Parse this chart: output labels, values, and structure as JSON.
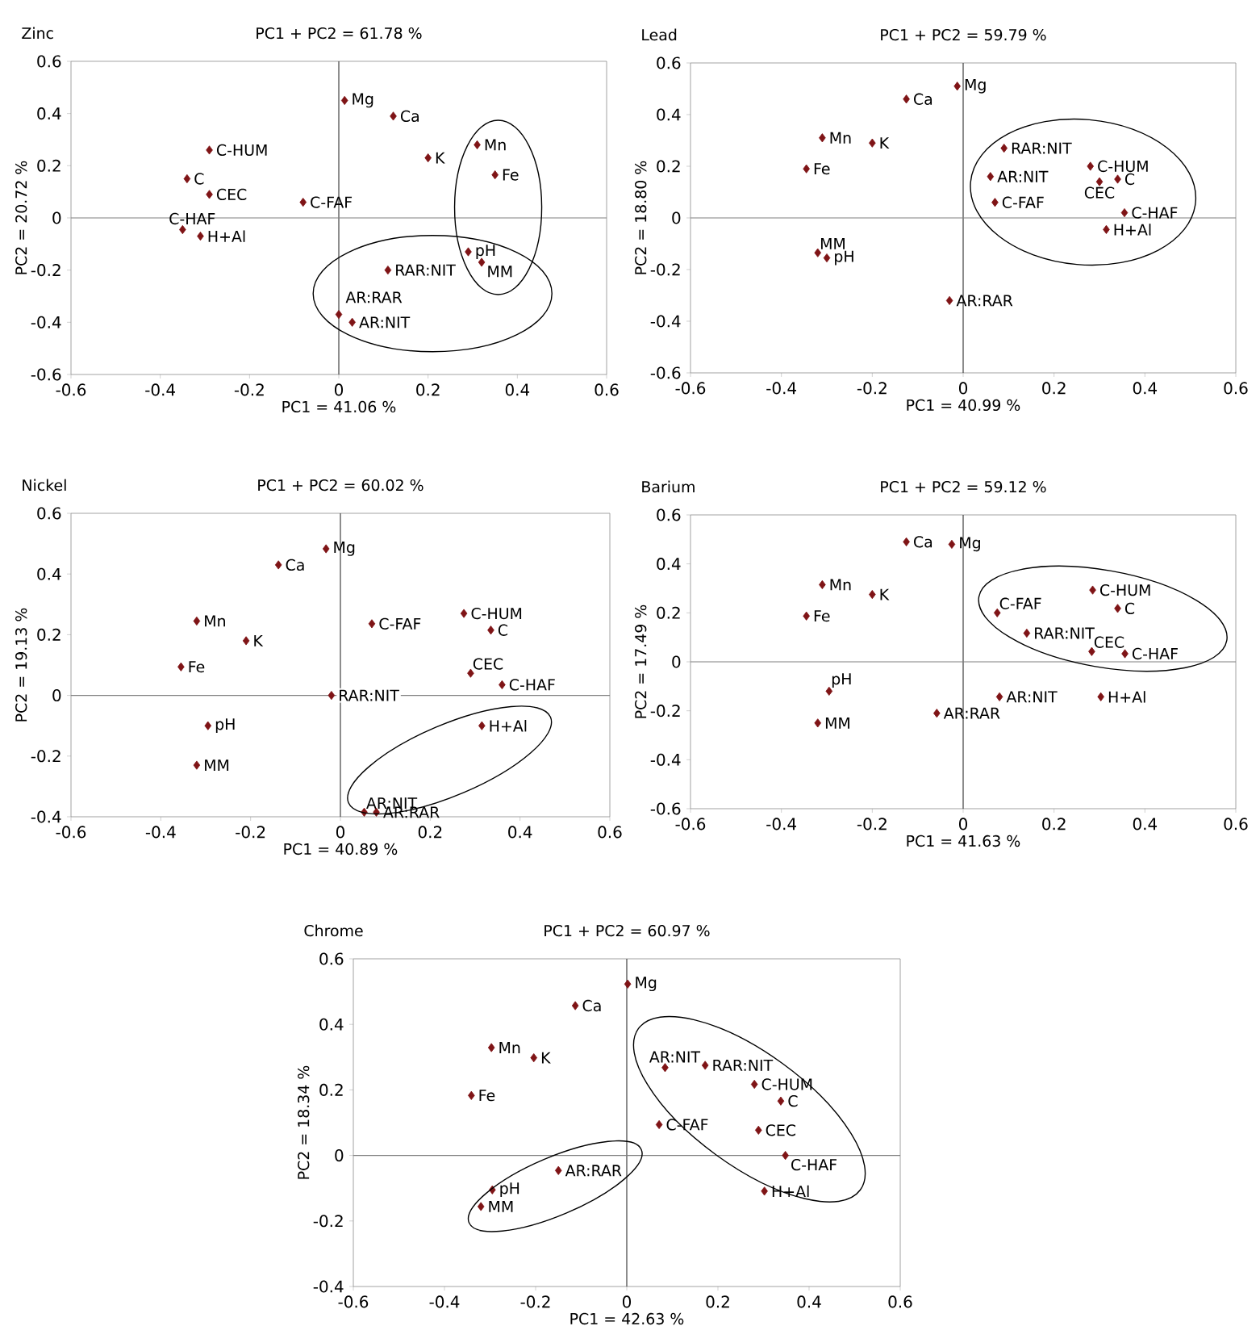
{
  "chart_data": [
    {
      "type": "scatter",
      "title": "Zinc",
      "subtitle": "PC1 + PC2 = 61.78 %",
      "xlabel": "PC1 = 41.06 %",
      "ylabel": "PC2 = 20.72 %",
      "xlim": [
        -0.6,
        0.6
      ],
      "ylim": [
        -0.6,
        0.6
      ],
      "xticks": [
        -0.6,
        -0.4,
        -0.2,
        0,
        0.2,
        0.4,
        0.6
      ],
      "yticks": [
        -0.6,
        -0.4,
        -0.2,
        0,
        0.2,
        0.4,
        0.6
      ],
      "marker": "diamond",
      "ref_lines": [
        {
          "axis": "x",
          "value": 0
        },
        {
          "axis": "y",
          "value": 0
        }
      ],
      "series": [
        {
          "color": "#7f1416",
          "x": [
            0.013,
            0.122,
            0.2,
            0.31,
            0.35,
            -0.29,
            -0.34,
            -0.29,
            -0.08,
            -0.35,
            -0.31,
            0.29,
            0.32,
            0.11,
            0.0,
            0.03
          ],
          "values": [
            0.45,
            0.39,
            0.23,
            0.28,
            0.165,
            0.26,
            0.15,
            0.09,
            0.06,
            -0.045,
            -0.07,
            -0.13,
            -0.17,
            -0.2,
            -0.37,
            -0.4
          ]
        }
      ],
      "annotations": [
        {
          "text": "Mg",
          "x": 0.013,
          "y": 0.45
        },
        {
          "text": "Ca",
          "x": 0.122,
          "y": 0.39
        },
        {
          "text": "K",
          "x": 0.2,
          "y": 0.23
        },
        {
          "text": "Mn",
          "x": 0.31,
          "y": 0.28
        },
        {
          "text": "Fe",
          "x": 0.35,
          "y": 0.165
        },
        {
          "text": "C-HUM",
          "x": -0.29,
          "y": 0.26
        },
        {
          "text": "C",
          "x": -0.34,
          "y": 0.15
        },
        {
          "text": "CEC",
          "x": -0.29,
          "y": 0.09
        },
        {
          "text": "C-FAF",
          "x": -0.08,
          "y": 0.06
        },
        {
          "text": "C-HAF",
          "x": -0.35,
          "y": -0.045
        },
        {
          "text": "H+Al",
          "x": -0.31,
          "y": -0.07
        },
        {
          "text": "pH",
          "x": 0.29,
          "y": -0.13
        },
        {
          "text": "MM",
          "x": 0.32,
          "y": -0.17
        },
        {
          "text": "RAR:NIT",
          "x": 0.11,
          "y": -0.2
        },
        {
          "text": "AR:RAR",
          "x": 0.0,
          "y": -0.37
        },
        {
          "text": "AR:NIT",
          "x": 0.03,
          "y": -0.4
        }
      ]
    },
    {
      "type": "scatter",
      "title": "Lead",
      "subtitle": "PC1 + PC2 = 59.79 %",
      "xlabel": "PC1 = 40.99 %",
      "ylabel": "PC2 = 18.80  %",
      "xlim": [
        -0.6,
        0.6
      ],
      "ylim": [
        -0.6,
        0.6
      ],
      "xticks": [
        -0.6,
        -0.4,
        -0.2,
        0,
        0.2,
        0.4,
        0.6
      ],
      "yticks": [
        -0.6,
        -0.4,
        -0.2,
        0,
        0.2,
        0.4,
        0.6
      ],
      "marker": "diamond",
      "ref_lines": [
        {
          "axis": "x",
          "value": 0
        },
        {
          "axis": "y",
          "value": 0
        }
      ],
      "series": [
        {
          "color": "#7f1416",
          "x": [
            -0.013,
            -0.125,
            -0.31,
            -0.2,
            -0.345,
            0.09,
            0.06,
            0.07,
            0.28,
            0.34,
            0.3,
            0.355,
            0.315,
            -0.32,
            -0.3,
            -0.03
          ],
          "values": [
            0.51,
            0.46,
            0.31,
            0.29,
            0.19,
            0.27,
            0.16,
            0.06,
            0.2,
            0.15,
            0.14,
            0.02,
            -0.045,
            -0.135,
            -0.155,
            -0.32
          ]
        }
      ],
      "annotations": [
        {
          "text": "Mg",
          "x": -0.013,
          "y": 0.51
        },
        {
          "text": "Ca",
          "x": -0.125,
          "y": 0.46
        },
        {
          "text": "Mn",
          "x": -0.31,
          "y": 0.31
        },
        {
          "text": "K",
          "x": -0.2,
          "y": 0.29
        },
        {
          "text": "Fe",
          "x": -0.345,
          "y": 0.19
        },
        {
          "text": "RAR:NIT",
          "x": 0.09,
          "y": 0.27
        },
        {
          "text": "AR:NIT",
          "x": 0.06,
          "y": 0.16
        },
        {
          "text": "C-FAF",
          "x": 0.07,
          "y": 0.06
        },
        {
          "text": "C-HUM",
          "x": 0.28,
          "y": 0.2
        },
        {
          "text": "C",
          "x": 0.34,
          "y": 0.15
        },
        {
          "text": "CEC",
          "x": 0.3,
          "y": 0.14
        },
        {
          "text": "C-HAF",
          "x": 0.355,
          "y": 0.02
        },
        {
          "text": "H+Al",
          "x": 0.315,
          "y": -0.045
        },
        {
          "text": "MM",
          "x": -0.32,
          "y": -0.135
        },
        {
          "text": "pH",
          "x": -0.3,
          "y": -0.155
        },
        {
          "text": "AR:RAR",
          "x": -0.03,
          "y": -0.32
        }
      ]
    },
    {
      "type": "scatter",
      "title": "Nickel",
      "subtitle": "PC1 + PC2 = 60.02 %",
      "xlabel": "PC1 = 40.89 %",
      "ylabel": "PC2 = 19.13  %",
      "xlim": [
        -0.6,
        0.6
      ],
      "ylim": [
        -0.4,
        0.6
      ],
      "xticks": [
        -0.6,
        -0.4,
        -0.2,
        0,
        0.2,
        0.4,
        0.6
      ],
      "yticks": [
        -0.4,
        -0.2,
        0,
        0.2,
        0.4,
        0.6
      ],
      "marker": "diamond",
      "ref_lines": [
        {
          "axis": "x",
          "value": 0
        },
        {
          "axis": "y",
          "value": 0
        }
      ],
      "series": [
        {
          "color": "#7f1416",
          "x": [
            -0.032,
            -0.138,
            -0.32,
            -0.21,
            -0.355,
            0.07,
            0.275,
            0.335,
            0.29,
            0.36,
            -0.02,
            0.315,
            -0.295,
            -0.32,
            0.053,
            0.08
          ],
          "values": [
            0.483,
            0.43,
            0.245,
            0.18,
            0.094,
            0.236,
            0.27,
            0.215,
            0.073,
            0.035,
            0.0,
            -0.1,
            -0.1,
            -0.23,
            -0.385,
            -0.385
          ]
        }
      ],
      "annotations": [
        {
          "text": "Mg",
          "x": -0.032,
          "y": 0.483
        },
        {
          "text": "Ca",
          "x": -0.138,
          "y": 0.43
        },
        {
          "text": "Mn",
          "x": -0.32,
          "y": 0.245
        },
        {
          "text": "K",
          "x": -0.21,
          "y": 0.18
        },
        {
          "text": "Fe",
          "x": -0.355,
          "y": 0.094
        },
        {
          "text": "C-FAF",
          "x": 0.07,
          "y": 0.236
        },
        {
          "text": "C-HUM",
          "x": 0.275,
          "y": 0.27
        },
        {
          "text": "C",
          "x": 0.335,
          "y": 0.215
        },
        {
          "text": "CEC",
          "x": 0.29,
          "y": 0.073
        },
        {
          "text": "C-HAF",
          "x": 0.36,
          "y": 0.035
        },
        {
          "text": "RAR:NIT",
          "x": -0.02,
          "y": 0.0
        },
        {
          "text": "H+Al",
          "x": 0.315,
          "y": -0.1
        },
        {
          "text": "pH",
          "x": -0.295,
          "y": -0.1
        },
        {
          "text": "MM",
          "x": -0.32,
          "y": -0.23
        },
        {
          "text": "AR:NIT",
          "x": 0.053,
          "y": -0.385
        },
        {
          "text": "AR:RAR",
          "x": 0.08,
          "y": -0.385
        }
      ]
    },
    {
      "type": "scatter",
      "title": "Barium",
      "subtitle": "PC1 + PC2 = 59.12 %",
      "xlabel": "PC1 = 41.63 %",
      "ylabel": "PC2 = 17.49  %",
      "xlim": [
        -0.6,
        0.6
      ],
      "ylim": [
        -0.6,
        0.6
      ],
      "xticks": [
        -0.6,
        -0.4,
        -0.2,
        0,
        0.2,
        0.4,
        0.6
      ],
      "yticks": [
        -0.6,
        -0.4,
        -0.2,
        0,
        0.2,
        0.4,
        0.6
      ],
      "marker": "diamond",
      "ref_lines": [
        {
          "axis": "x",
          "value": 0
        },
        {
          "axis": "y",
          "value": 0
        }
      ],
      "series": [
        {
          "color": "#7f1416",
          "x": [
            -0.125,
            -0.025,
            -0.31,
            -0.2,
            -0.345,
            0.075,
            0.285,
            0.34,
            0.14,
            0.283,
            0.356,
            -0.295,
            -0.32,
            -0.058,
            0.08,
            0.303
          ],
          "values": [
            0.49,
            0.48,
            0.315,
            0.275,
            0.187,
            0.2,
            0.293,
            0.218,
            0.117,
            0.042,
            0.033,
            -0.12,
            -0.25,
            -0.21,
            -0.143,
            -0.143
          ]
        }
      ],
      "annotations": [
        {
          "text": "Ca",
          "x": -0.125,
          "y": 0.49
        },
        {
          "text": "Mg",
          "x": -0.025,
          "y": 0.48
        },
        {
          "text": "Mn",
          "x": -0.31,
          "y": 0.315
        },
        {
          "text": "K",
          "x": -0.2,
          "y": 0.275
        },
        {
          "text": "Fe",
          "x": -0.345,
          "y": 0.187
        },
        {
          "text": "C-FAF",
          "x": 0.075,
          "y": 0.2
        },
        {
          "text": "C-HUM",
          "x": 0.285,
          "y": 0.293
        },
        {
          "text": "C",
          "x": 0.34,
          "y": 0.218
        },
        {
          "text": "RAR:NIT",
          "x": 0.14,
          "y": 0.117
        },
        {
          "text": "CEC",
          "x": 0.283,
          "y": 0.042
        },
        {
          "text": "C-HAF",
          "x": 0.356,
          "y": 0.033
        },
        {
          "text": "pH",
          "x": -0.295,
          "y": -0.12
        },
        {
          "text": "MM",
          "x": -0.32,
          "y": -0.25
        },
        {
          "text": "AR:RAR",
          "x": -0.058,
          "y": -0.21
        },
        {
          "text": "AR:NIT",
          "x": 0.08,
          "y": -0.143
        },
        {
          "text": "H+Al",
          "x": 0.303,
          "y": -0.143
        }
      ]
    },
    {
      "type": "scatter",
      "title": "Chrome",
      "subtitle": "PC1 + PC2 = 60.97 %",
      "xlabel": "PC1 = 42.63 %",
      "ylabel": "PC2 = 18.34  %",
      "xlim": [
        -0.6,
        0.6
      ],
      "ylim": [
        -0.4,
        0.6
      ],
      "xticks": [
        -0.6,
        -0.4,
        -0.2,
        0,
        0.2,
        0.4,
        0.6
      ],
      "yticks": [
        -0.4,
        -0.2,
        0,
        0.2,
        0.4,
        0.6
      ],
      "marker": "diamond",
      "ref_lines": [
        {
          "axis": "x",
          "value": 0
        },
        {
          "axis": "y",
          "value": 0
        }
      ],
      "series": [
        {
          "color": "#7f1416",
          "x": [
            0.002,
            -0.113,
            -0.297,
            -0.204,
            -0.341,
            0.084,
            0.172,
            0.28,
            0.338,
            0.071,
            0.289,
            0.348,
            0.302,
            -0.15,
            -0.295,
            -0.32
          ],
          "values": [
            0.523,
            0.457,
            0.329,
            0.298,
            0.183,
            0.268,
            0.275,
            0.217,
            0.166,
            0.094,
            0.077,
            0.0,
            -0.109,
            -0.046,
            -0.105,
            -0.156
          ]
        }
      ],
      "annotations": [
        {
          "text": "Mg",
          "x": 0.002,
          "y": 0.523
        },
        {
          "text": "Ca",
          "x": -0.113,
          "y": 0.457
        },
        {
          "text": "Mn",
          "x": -0.297,
          "y": 0.329
        },
        {
          "text": "K",
          "x": -0.204,
          "y": 0.298
        },
        {
          "text": "Fe",
          "x": -0.341,
          "y": 0.183
        },
        {
          "text": "AR:NIT",
          "x": 0.084,
          "y": 0.268
        },
        {
          "text": "RAR:NIT",
          "x": 0.172,
          "y": 0.275
        },
        {
          "text": "C-HUM",
          "x": 0.28,
          "y": 0.217
        },
        {
          "text": "C",
          "x": 0.338,
          "y": 0.166
        },
        {
          "text": "C-FAF",
          "x": 0.071,
          "y": 0.094
        },
        {
          "text": "CEC",
          "x": 0.289,
          "y": 0.077
        },
        {
          "text": "C-HAF",
          "x": 0.348,
          "y": 0.0
        },
        {
          "text": "H+Al",
          "x": 0.302,
          "y": -0.109
        },
        {
          "text": "AR:RAR",
          "x": -0.15,
          "y": -0.046
        },
        {
          "text": "pH",
          "x": -0.295,
          "y": -0.105
        },
        {
          "text": "MM",
          "x": -0.32,
          "y": -0.156
        }
      ]
    }
  ]
}
